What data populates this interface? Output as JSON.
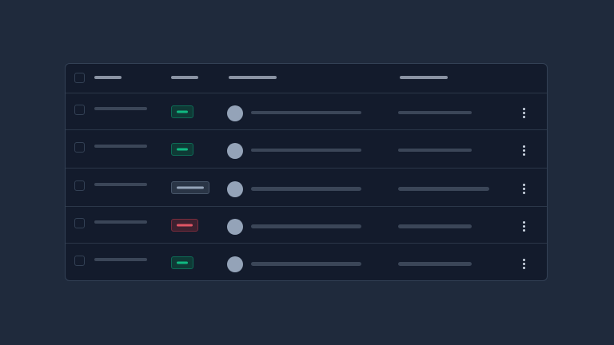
{
  "colors": {
    "background": "#1f2a3c",
    "surface": "#131b2c",
    "border": "#334155",
    "skeleton": "#3b4658",
    "avatar": "#94a3b8",
    "success": "#10b981",
    "neutral": "#94a3b8",
    "danger": "#e05565"
  },
  "header": {
    "columns": [
      "select",
      "col-1",
      "status",
      "user",
      "col-4"
    ]
  },
  "rows": [
    {
      "status": "success",
      "menu_icon": "more-vertical-icon"
    },
    {
      "status": "success",
      "menu_icon": "more-vertical-icon"
    },
    {
      "status": "neutral",
      "menu_icon": "more-vertical-icon"
    },
    {
      "status": "danger",
      "menu_icon": "more-vertical-icon"
    },
    {
      "status": "success",
      "menu_icon": "more-vertical-icon"
    }
  ]
}
